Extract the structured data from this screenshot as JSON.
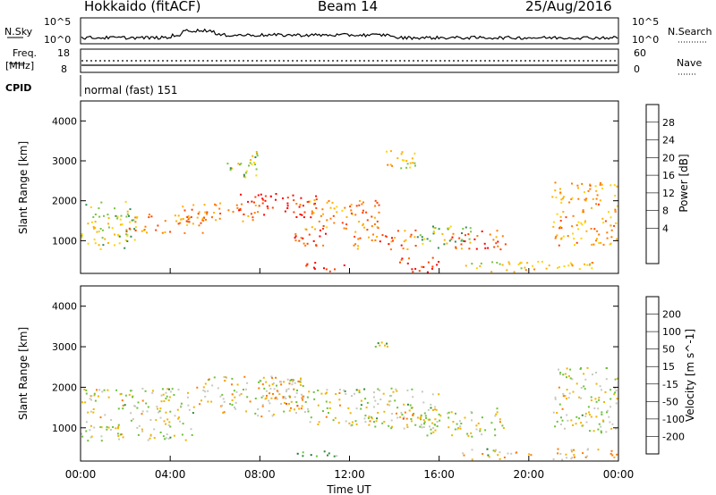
{
  "header": {
    "station": "Hokkaido (fitACF)",
    "beam": "Beam 14",
    "date": "25/Aug/2016"
  },
  "top_panels": {
    "nsky_label": "N.Sky",
    "nsky_ticks": [
      "10^5",
      "10^0"
    ],
    "nsearch_label": "N.Search",
    "nsearch_ticks": [
      "10^5",
      "10^0"
    ],
    "freq_label": "Freq.",
    "freq_unit": "[MHz]",
    "freq_ticks": [
      "18",
      "8"
    ],
    "nave_label": "Nave",
    "nave_ticks": [
      "60",
      "0"
    ],
    "cpid_label": "CPID",
    "cpid_text": "normal (fast) 151"
  },
  "chart_data": [
    {
      "type": "heatmap",
      "name": "Power",
      "ylabel": "Slant Range [km]",
      "xlabel": "",
      "colorbar_label": "Power [dB]",
      "colorbar_ticks": [
        "28",
        "24",
        "20",
        "16",
        "12",
        "8",
        "4"
      ],
      "ylim": [
        180,
        4500
      ],
      "yticks": [
        "4000",
        "3000",
        "2000",
        "1000"
      ],
      "colors": [
        "#0000ff",
        "#1f4fb0",
        "#2e8b57",
        "#7cc242",
        "#ffd400",
        "#ffb000",
        "#ff7a00",
        "#ff4000",
        "#ff0000"
      ],
      "regions": [
        {
          "t0": 0.0,
          "t1": 2.5,
          "r0": 800,
          "r1": 2000,
          "level": 0.45
        },
        {
          "t0": 2.0,
          "t1": 5.5,
          "r0": 1200,
          "r1": 1700,
          "level": 0.7
        },
        {
          "t0": 4.5,
          "t1": 8.0,
          "r0": 1500,
          "r1": 2000,
          "level": 0.72
        },
        {
          "t0": 7.0,
          "t1": 10.5,
          "r0": 1600,
          "r1": 2200,
          "level": 0.92
        },
        {
          "t0": 10.0,
          "t1": 13.5,
          "r0": 1300,
          "r1": 2100,
          "level": 0.72
        },
        {
          "t0": 9.5,
          "t1": 11.0,
          "r0": 800,
          "r1": 1300,
          "level": 0.8
        },
        {
          "t0": 12.0,
          "t1": 15.0,
          "r0": 800,
          "r1": 1300,
          "level": 0.75
        },
        {
          "t0": 13.5,
          "t1": 15.0,
          "r0": 2700,
          "r1": 3300,
          "level": 0.55
        },
        {
          "t0": 15.0,
          "t1": 17.5,
          "r0": 800,
          "r1": 1400,
          "level": 0.4
        },
        {
          "t0": 16.5,
          "t1": 19.0,
          "r0": 800,
          "r1": 1300,
          "level": 0.82
        },
        {
          "t0": 10.0,
          "t1": 12.0,
          "r0": 200,
          "r1": 500,
          "level": 0.95
        },
        {
          "t0": 14.0,
          "t1": 16.0,
          "r0": 200,
          "r1": 600,
          "level": 0.9
        },
        {
          "t0": 17.0,
          "t1": 24.0,
          "r0": 200,
          "r1": 500,
          "level": 0.55
        },
        {
          "t0": 21.0,
          "t1": 24.0,
          "r0": 900,
          "r1": 2500,
          "level": 0.65
        },
        {
          "t0": 6.5,
          "t1": 8.0,
          "r0": 2600,
          "r1": 3300,
          "level": 0.45
        }
      ]
    },
    {
      "type": "heatmap",
      "name": "Velocity",
      "ylabel": "Slant Range [km]",
      "xlabel": "Time UT",
      "colorbar_label": "Velocity [m s^-1]",
      "colorbar_ticks": [
        "200",
        "100",
        "50",
        "15",
        "-15",
        "-50",
        "-100",
        "-200"
      ],
      "ylim": [
        180,
        4500
      ],
      "yticks": [
        "4000",
        "3000",
        "2000",
        "1000"
      ],
      "xticks": [
        "00:00",
        "04:00",
        "08:00",
        "12:00",
        "16:00",
        "20:00",
        "00:00"
      ],
      "colors": [
        "#1c1cb4",
        "#1f6f3a",
        "#2e8b3a",
        "#6cc23a",
        "#c8c8c0",
        "#f0b400",
        "#ff7a00",
        "#ff3a00",
        "#ff0000"
      ],
      "regions": [
        {
          "t0": 0.0,
          "t1": 5.0,
          "r0": 700,
          "r1": 2000,
          "level": 0.5
        },
        {
          "t0": 5.0,
          "t1": 10.0,
          "r0": 1300,
          "r1": 2300,
          "level": 0.55
        },
        {
          "t0": 10.0,
          "t1": 16.0,
          "r0": 1000,
          "r1": 2000,
          "level": 0.5
        },
        {
          "t0": 15.0,
          "t1": 19.0,
          "r0": 800,
          "r1": 1500,
          "level": 0.5
        },
        {
          "t0": 21.0,
          "t1": 24.0,
          "r0": 900,
          "r1": 2500,
          "level": 0.5
        },
        {
          "t0": 8.0,
          "t1": 10.0,
          "r0": 1500,
          "r1": 2200,
          "level": 0.62
        },
        {
          "t0": 14.0,
          "t1": 15.0,
          "r0": 1200,
          "r1": 1400,
          "level": 0.75
        },
        {
          "t0": 9.5,
          "t1": 11.5,
          "r0": 300,
          "r1": 500,
          "level": 0.35
        },
        {
          "t0": 18.0,
          "t1": 19.0,
          "r0": 300,
          "r1": 500,
          "level": 0.35
        },
        {
          "t0": 17.0,
          "t1": 24.0,
          "r0": 200,
          "r1": 500,
          "level": 0.6
        },
        {
          "t0": 13.0,
          "t1": 14.0,
          "r0": 3000,
          "r1": 3300,
          "level": 0.5
        }
      ]
    }
  ]
}
